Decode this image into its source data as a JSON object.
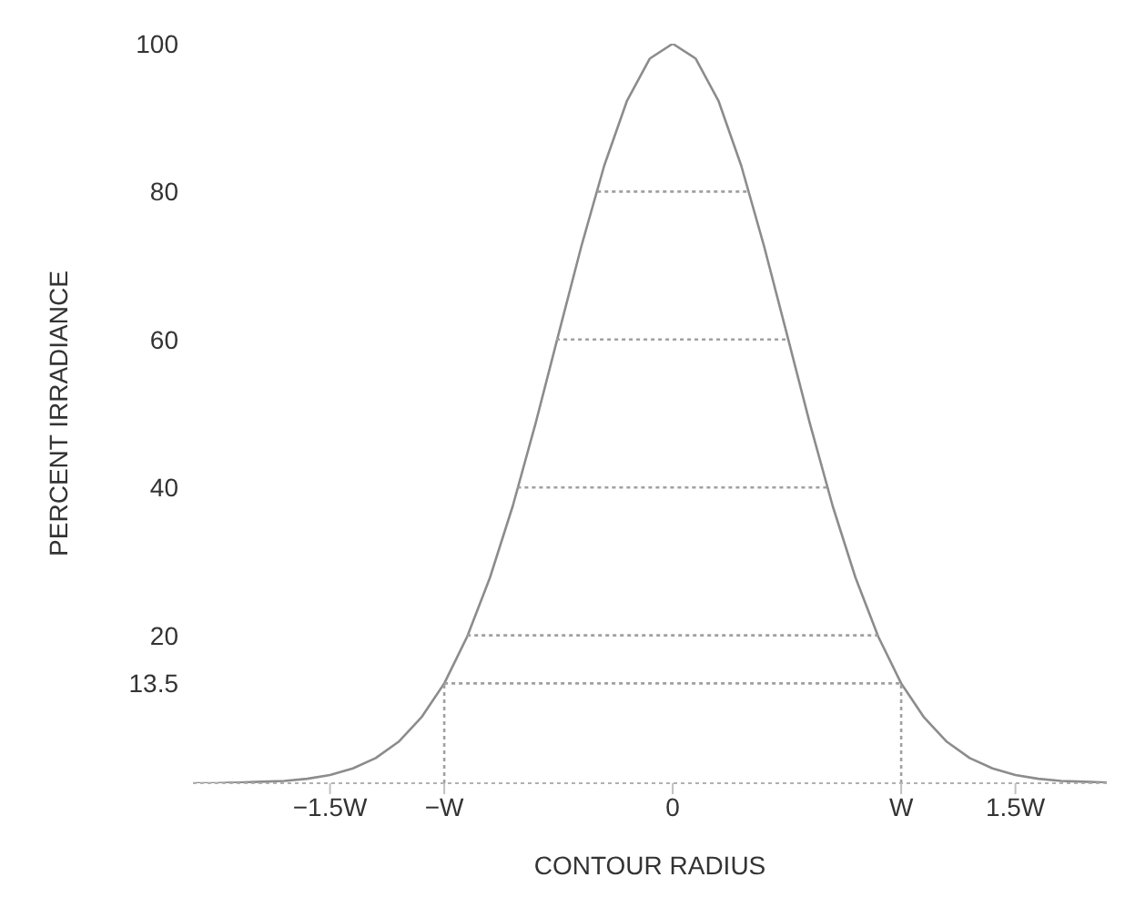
{
  "chart_data": {
    "type": "line",
    "xlabel": "CONTOUR RADIUS",
    "ylabel": "PERCENT IRRADIANCE",
    "xlim": [
      -2.1,
      1.9
    ],
    "ylim": [
      0,
      100
    ],
    "xticks": [
      {
        "value": -1.5,
        "label": "−1.5W"
      },
      {
        "value": -1,
        "label": "−W"
      },
      0,
      {
        "value": 1,
        "label": "W"
      },
      {
        "value": 1.5,
        "label": "1.5W"
      }
    ],
    "yticks": [
      13.5,
      20,
      40,
      60,
      80,
      100
    ],
    "grid": false,
    "series": [
      {
        "color": "#8c8c8c",
        "x": [
          -2.1,
          -2.0,
          -1.9,
          -1.8,
          -1.7,
          -1.6,
          -1.5,
          -1.4,
          -1.3,
          -1.2,
          -1.1,
          -1.0,
          -0.9,
          -0.8,
          -0.7,
          -0.6,
          -0.5,
          -0.4,
          -0.3,
          -0.2,
          -0.1,
          0,
          0.1,
          0.2,
          0.3,
          0.4,
          0.5,
          0.6,
          0.7,
          0.8,
          0.9,
          1.0,
          1.1,
          1.2,
          1.3,
          1.4,
          1.5,
          1.6,
          1.7,
          1.8,
          1.9
        ],
        "values": [
          0,
          0,
          0.1,
          0.2,
          0.3,
          0.6,
          1.1,
          2.0,
          3.4,
          5.6,
          8.9,
          13.5,
          19.8,
          27.8,
          37.5,
          48.7,
          60.7,
          72.6,
          83.5,
          92.3,
          98.0,
          100,
          98.0,
          92.3,
          83.5,
          72.6,
          60.7,
          48.7,
          37.5,
          27.8,
          19.8,
          13.5,
          8.9,
          5.6,
          3.4,
          2.0,
          1.1,
          0.6,
          0.3,
          0.2,
          0.1
        ]
      },
      {
        "color": "#a0a0a0",
        "line_style": "dotted",
        "x": [
          -0.33,
          0.33
        ],
        "values": [
          80,
          80
        ]
      },
      {
        "color": "#a0a0a0",
        "line_style": "dotted",
        "x": [
          -0.51,
          0.51
        ],
        "values": [
          60,
          60
        ]
      },
      {
        "color": "#a0a0a0",
        "line_style": "dotted",
        "x": [
          -0.68,
          0.68
        ],
        "values": [
          40,
          40
        ]
      },
      {
        "color": "#a0a0a0",
        "line_style": "dotted",
        "x": [
          -0.9,
          0.9
        ],
        "values": [
          20,
          20
        ]
      },
      {
        "color": "#a0a0a0",
        "line_style": "dotted",
        "x": [
          -1,
          1
        ],
        "values": [
          13.5,
          13.5
        ]
      },
      {
        "color": "#a0a0a0",
        "line_style": "dotted",
        "x": [
          -1,
          -1
        ],
        "values": [
          0,
          13.5
        ]
      },
      {
        "color": "#a0a0a0",
        "line_style": "dotted",
        "x": [
          1,
          1
        ],
        "values": [
          0,
          13.5
        ]
      }
    ]
  }
}
